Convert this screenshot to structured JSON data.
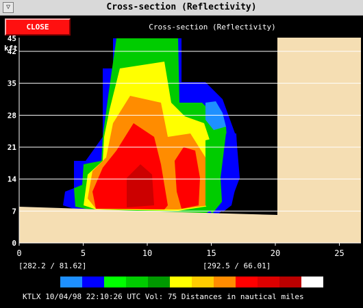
{
  "window": {
    "title": "Cross-section (Reflectivity)",
    "menu_glyph": "▽"
  },
  "toolbar": {
    "close_label": "CLOSE",
    "header_label": "Cross-section (Reflectivity)"
  },
  "chart_data": {
    "type": "heatmap",
    "title": "Cross-section (Reflectivity)",
    "ylabel": "kft",
    "xlim": [
      0,
      25
    ],
    "ylim": [
      0,
      45
    ],
    "x_ticks": [
      "0",
      "5",
      "10",
      "15",
      "20",
      "25"
    ],
    "y_ticks": [
      "0",
      "7",
      "14",
      "21",
      "28",
      "35",
      "42",
      "45"
    ],
    "grid": "horizontal",
    "terrain_color": "#f5deb3"
  },
  "coords": {
    "left": "[282.2 /  81.62]",
    "right": "[292.5 /  66.01]"
  },
  "legend_colors": [
    "#1e90ff",
    "#0000ff",
    "#00ff00",
    "#00cc00",
    "#009900",
    "#ffff00",
    "#ffcc00",
    "#ff8c00",
    "#ff0000",
    "#dd0000",
    "#bb0000",
    "#ffffff"
  ],
  "status": {
    "text": "KTLX 10/04/98 22:10:26 UTC Vol: 75 Distances in nautical miles"
  }
}
